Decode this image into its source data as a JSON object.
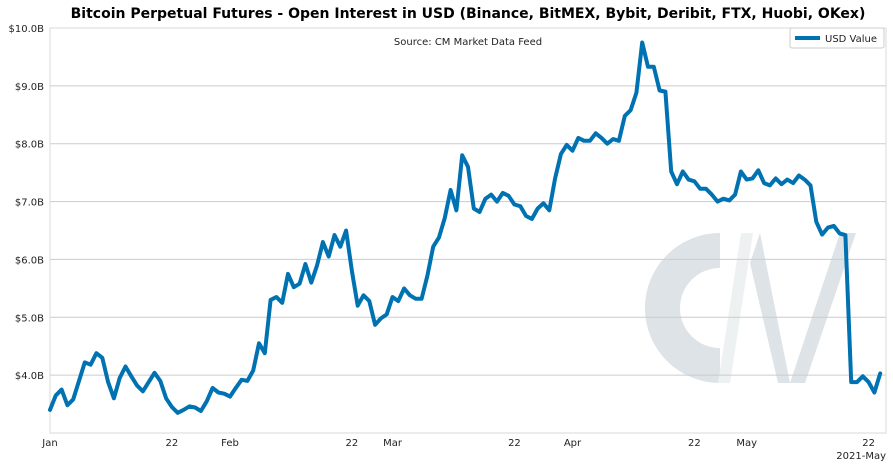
{
  "chart_data": {
    "type": "line",
    "title": "Bitcoin Perpetual Futures - Open Interest in USD (Binance, BitMEX, Bybit, Deribit, FTX, Huobi, OKex)",
    "source": "Source: CM Market Data Feed",
    "watermark": "CM",
    "xlabel": "",
    "ylabel": "",
    "ylim": [
      3.0,
      10.0
    ],
    "y_unit": "USD billions",
    "y_ticks": [
      {
        "value": 4.0,
        "label": "$4.0B"
      },
      {
        "value": 5.0,
        "label": "$5.0B"
      },
      {
        "value": 6.0,
        "label": "$6.0B"
      },
      {
        "value": 7.0,
        "label": "$7.0B"
      },
      {
        "value": 8.0,
        "label": "$8.0B"
      },
      {
        "value": 9.0,
        "label": "$9.0B"
      },
      {
        "value": 10.0,
        "label": "$10.0B"
      }
    ],
    "xlim": [
      "2021-01-01",
      "2021-05-25"
    ],
    "x_ticks": [
      {
        "date": "2021-01-01",
        "label": "Jan"
      },
      {
        "date": "2021-01-22",
        "label": "22"
      },
      {
        "date": "2021-02-01",
        "label": "Feb"
      },
      {
        "date": "2021-02-22",
        "label": "22"
      },
      {
        "date": "2021-03-01",
        "label": "Mar"
      },
      {
        "date": "2021-03-22",
        "label": "22"
      },
      {
        "date": "2021-04-01",
        "label": "Apr"
      },
      {
        "date": "2021-04-22",
        "label": "22"
      },
      {
        "date": "2021-05-01",
        "label": "May"
      },
      {
        "date": "2021-05-22",
        "label": "22"
      }
    ],
    "x_offset_label": "2021-May",
    "grid": "horizontal",
    "legend_position": "top-right",
    "series": [
      {
        "name": "USD Value",
        "color": "#0072b2",
        "start_date": "2021-01-01",
        "values": [
          3.4,
          3.65,
          3.75,
          3.48,
          3.58,
          3.9,
          4.22,
          4.18,
          4.38,
          4.3,
          3.88,
          3.6,
          3.95,
          4.15,
          3.98,
          3.82,
          3.72,
          3.88,
          4.04,
          3.9,
          3.6,
          3.45,
          3.35,
          3.4,
          3.46,
          3.44,
          3.38,
          3.55,
          3.78,
          3.7,
          3.68,
          3.63,
          3.78,
          3.92,
          3.9,
          4.08,
          4.55,
          4.38,
          5.3,
          5.35,
          5.25,
          5.75,
          5.52,
          5.58,
          5.92,
          5.6,
          5.9,
          6.3,
          6.05,
          6.42,
          6.22,
          6.5,
          5.8,
          5.2,
          5.38,
          5.28,
          4.87,
          4.98,
          5.05,
          5.35,
          5.28,
          5.5,
          5.38,
          5.32,
          5.32,
          5.72,
          6.22,
          6.38,
          6.72,
          7.2,
          6.85,
          7.8,
          7.6,
          6.88,
          6.82,
          7.05,
          7.12,
          7.0,
          7.15,
          7.1,
          6.95,
          6.92,
          6.75,
          6.7,
          6.88,
          6.97,
          6.85,
          7.4,
          7.82,
          7.98,
          7.88,
          8.1,
          8.05,
          8.05,
          8.18,
          8.1,
          8.0,
          8.08,
          8.05,
          8.48,
          8.58,
          8.88,
          9.75,
          9.33,
          9.33,
          8.92,
          8.9,
          7.52,
          7.3,
          7.52,
          7.38,
          7.35,
          7.22,
          7.22,
          7.12,
          7.0,
          7.05,
          7.02,
          7.12,
          7.52,
          7.38,
          7.4,
          7.54,
          7.32,
          7.28,
          7.4,
          7.3,
          7.38,
          7.32,
          7.45,
          7.38,
          7.28,
          6.65,
          6.43,
          6.55,
          6.58,
          6.45,
          6.42,
          3.88,
          3.88,
          3.98,
          3.88,
          3.7,
          4.03
        ]
      }
    ]
  }
}
